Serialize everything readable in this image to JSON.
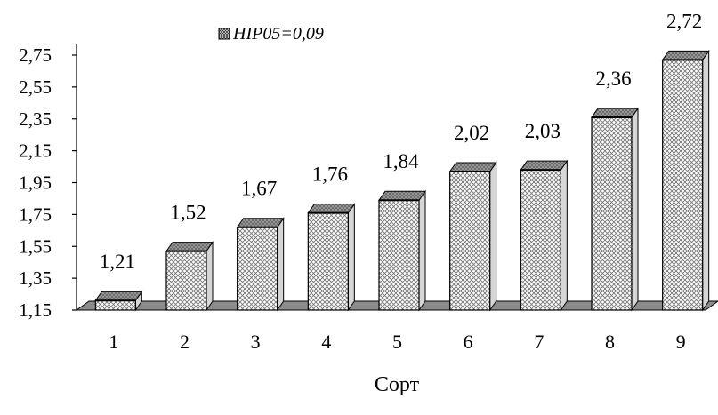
{
  "chart_data": {
    "type": "bar",
    "title": "",
    "xlabel": "Сорт",
    "ylabel": "",
    "categories": [
      "1",
      "2",
      "3",
      "4",
      "5",
      "6",
      "7",
      "8",
      "9"
    ],
    "values": [
      1.21,
      1.52,
      1.67,
      1.76,
      1.84,
      2.02,
      2.03,
      2.36,
      2.72
    ],
    "value_labels": [
      "1,21",
      "1,52",
      "1,67",
      "1,76",
      "1,84",
      "2,02",
      "2,03",
      "2,36",
      "2,72"
    ],
    "error_margin": 0.09,
    "ylim": [
      1.15,
      2.75
    ],
    "yticks": [
      1.15,
      1.35,
      1.55,
      1.75,
      1.95,
      2.15,
      2.35,
      2.55,
      2.75
    ],
    "ytick_labels": [
      "1,15",
      "1,35",
      "1,55",
      "1,75",
      "1,95",
      "2,15",
      "2,35",
      "2,55",
      "2,75"
    ],
    "legend": {
      "label": "HIP05=0,09",
      "placement": "top"
    },
    "grid": false,
    "style": "3d-hatched",
    "colors": {
      "bar_fill": "#ffffff",
      "hatch": "#777777",
      "cap": "#9a9a9a",
      "floor": "#8c8c8c",
      "edge": "#000000"
    }
  }
}
